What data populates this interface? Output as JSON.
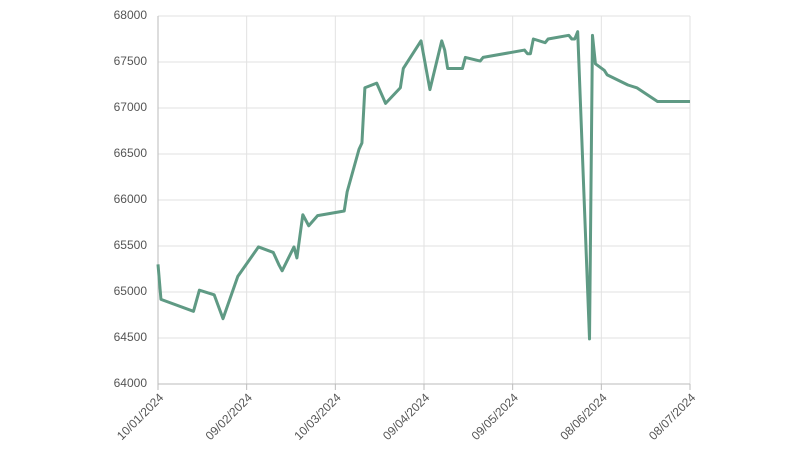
{
  "chart_data": {
    "type": "line",
    "x": [
      "10/01/2024",
      "11/01/2024",
      "22/01/2024",
      "24/01/2024",
      "29/01/2024",
      "01/02/2024",
      "06/02/2024",
      "13/02/2024",
      "18/02/2024",
      "20/02/2024",
      "21/02/2024",
      "25/02/2024",
      "26/02/2024",
      "28/02/2024",
      "01/03/2024",
      "04/03/2024",
      "13/03/2024",
      "14/03/2024",
      "18/03/2024",
      "19/03/2024",
      "20/03/2024",
      "24/03/2024",
      "27/03/2024",
      "01/04/2024",
      "02/04/2024",
      "08/04/2024",
      "11/04/2024",
      "15/04/2024",
      "16/04/2024",
      "17/04/2024",
      "22/04/2024",
      "23/04/2024",
      "28/04/2024",
      "29/04/2024",
      "13/05/2024",
      "14/05/2024",
      "15/05/2024",
      "16/05/2024",
      "20/05/2024",
      "21/05/2024",
      "28/05/2024",
      "29/05/2024",
      "30/05/2024",
      "31/05/2024",
      "04/06/2024",
      "05/06/2024",
      "06/06/2024",
      "09/06/2024",
      "10/06/2024",
      "17/06/2024",
      "20/06/2024",
      "27/06/2024",
      "08/07/2024"
    ],
    "series": [
      {
        "color": "#5f9a84",
        "values": [
          65300,
          64920,
          64790,
          65020,
          64970,
          64710,
          65170,
          65490,
          65430,
          65290,
          65230,
          65490,
          65370,
          65840,
          65720,
          65830,
          65880,
          66090,
          66550,
          66620,
          67220,
          67270,
          67050,
          67220,
          67430,
          67730,
          67200,
          67730,
          67630,
          67430,
          67430,
          67550,
          67510,
          67550,
          67630,
          67590,
          67590,
          67750,
          67710,
          67750,
          67790,
          67750,
          67750,
          67830,
          64490,
          67790,
          67480,
          67410,
          67360,
          67250,
          67220,
          67070,
          67070
        ]
      }
    ],
    "xlim": [
      "10/01/2024",
      "08/07/2024"
    ],
    "xticks": [
      "10/01/2024",
      "09/02/2024",
      "10/03/2024",
      "09/04/2024",
      "09/05/2024",
      "08/06/2024",
      "08/07/2024"
    ],
    "ylim": [
      64000,
      68000
    ],
    "yticks": [
      64000,
      64500,
      65000,
      65500,
      66000,
      66500,
      67000,
      67500,
      68000
    ],
    "grid": true
  }
}
